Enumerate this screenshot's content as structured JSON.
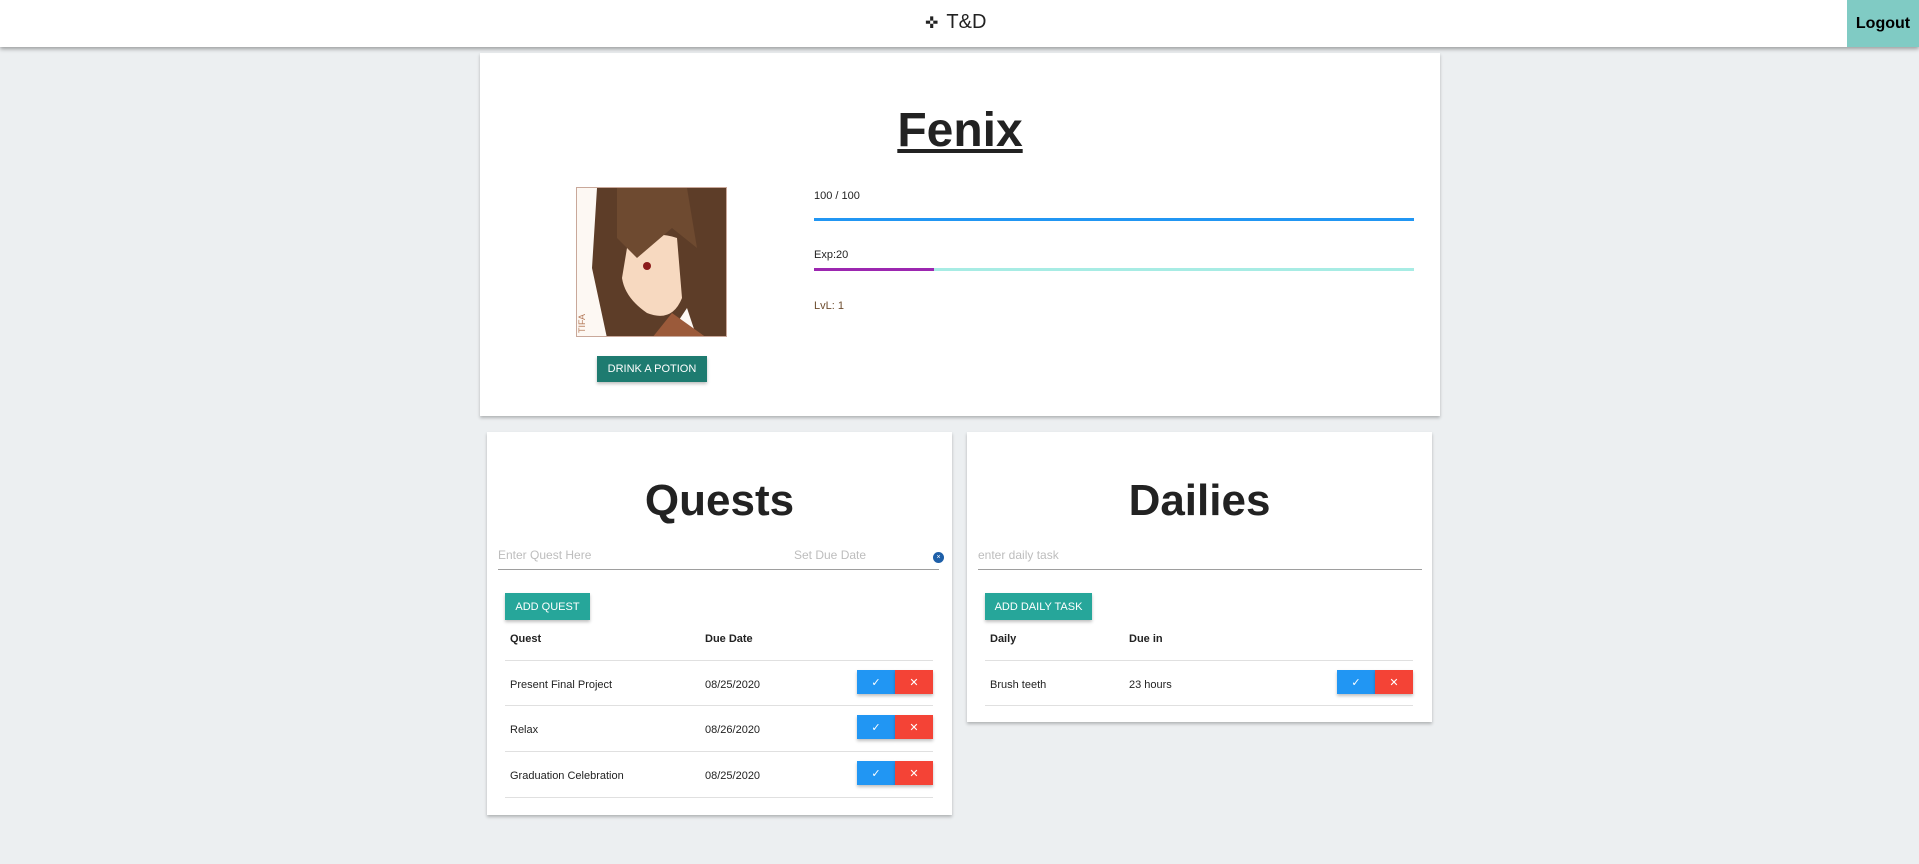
{
  "nav": {
    "brand": "T&D",
    "brand_icon": "gamepad-icon",
    "logout": "Logout"
  },
  "profile": {
    "name": "Fenix",
    "hp_text": "100 / 100",
    "hp_fraction": 1.0,
    "exp_text": "Exp:20",
    "exp_fraction": 0.2,
    "level_text": "LvL: 1",
    "potion_button": "DRINK A POTION",
    "avatar_watermark": "TIFA"
  },
  "colors": {
    "hp": "#2196f3",
    "exp": "#9c27b0",
    "exp_track": "#a7ece4",
    "teal": "#26a69a",
    "dark_teal": "#1e7b70",
    "check": "#2196f3",
    "delete": "#f44336"
  },
  "quests": {
    "title": "Quests",
    "input_placeholder": "Enter Quest Here",
    "date_placeholder": "Set Due Date",
    "add_button": "ADD QUEST",
    "headers": [
      "Quest",
      "Due Date"
    ],
    "rows": [
      {
        "name": "Present Final Project",
        "due": "08/25/2020"
      },
      {
        "name": "Relax",
        "due": "08/26/2020"
      },
      {
        "name": "Graduation Celebration",
        "due": "08/25/2020"
      }
    ]
  },
  "dailies": {
    "title": "Dailies",
    "input_placeholder": "enter daily task",
    "add_button": "ADD DAILY TASK",
    "headers": [
      "Daily",
      "Due in"
    ],
    "rows": [
      {
        "name": "Brush teeth",
        "due": "23 hours"
      }
    ]
  },
  "actions": {
    "check": "✓",
    "delete": "✕"
  }
}
